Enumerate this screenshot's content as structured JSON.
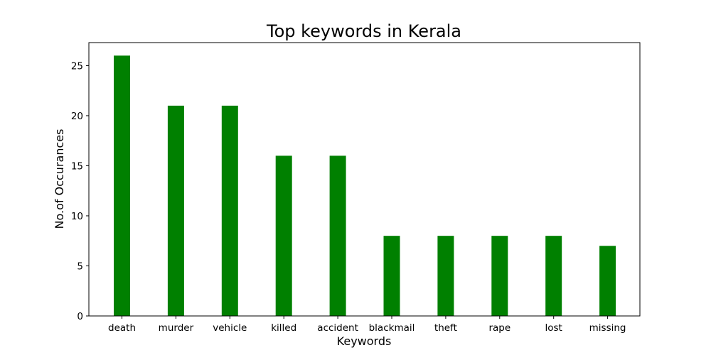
{
  "chart_data": {
    "type": "bar",
    "title": "Top keywords in Kerala",
    "xlabel": "Keywords",
    "ylabel": "No.of Occurances",
    "categories": [
      "death",
      "murder",
      "vehicle",
      "killed",
      "accident",
      "blackmail",
      "theft",
      "rape",
      "lost",
      "missing"
    ],
    "values": [
      26,
      21,
      21,
      16,
      16,
      8,
      8,
      8,
      8,
      7
    ],
    "ylim": [
      0,
      27.3
    ],
    "yticks": [
      0,
      5,
      10,
      15,
      20,
      25
    ],
    "grid": false,
    "legend": "none",
    "bar_color": "#008000"
  }
}
